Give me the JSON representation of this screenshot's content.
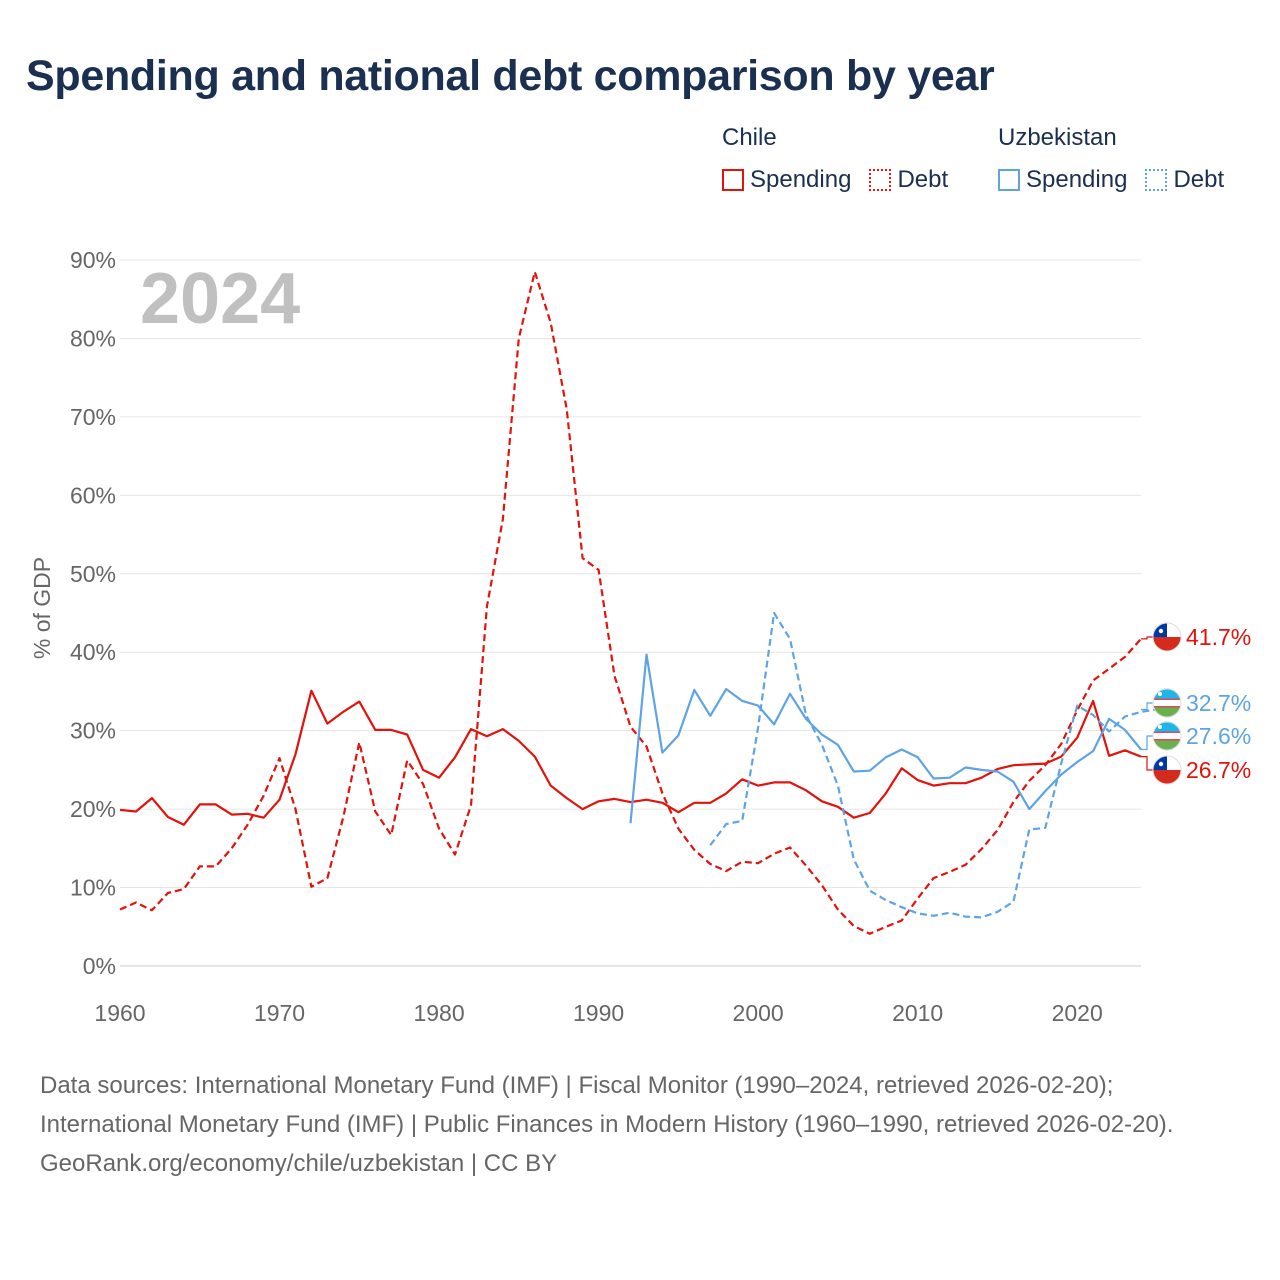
{
  "title": "Spending and national debt comparison by year",
  "legend": {
    "groups": [
      {
        "name": "Chile",
        "color": "#e3120b",
        "items": [
          {
            "label": "Spending",
            "style": "solid"
          },
          {
            "label": "Debt",
            "style": "dotted"
          }
        ]
      },
      {
        "name": "Uzbekistan",
        "color": "#5ea4e4",
        "items": [
          {
            "label": "Spending",
            "style": "solid"
          },
          {
            "label": "Debt",
            "style": "dotted"
          }
        ]
      }
    ]
  },
  "year_label": "2024",
  "chart_data": {
    "type": "line",
    "ylabel": "% of GDP",
    "xlabel": "",
    "x_ticks": [
      1960,
      1970,
      1980,
      1990,
      2000,
      2010,
      2020
    ],
    "y_ticks": [
      0,
      10,
      20,
      30,
      40,
      50,
      60,
      70,
      80,
      90
    ],
    "y_tick_labels": [
      "0%",
      "10%",
      "20%",
      "30%",
      "40%",
      "50%",
      "60%",
      "70%",
      "80%",
      "90%"
    ],
    "xlim": [
      1960,
      2024
    ],
    "ylim": [
      0,
      90
    ],
    "series": [
      {
        "name": "Chile Spending",
        "color": "#e3120b",
        "dash": "solid",
        "start_year": 1960,
        "values": [
          19.9,
          19.7,
          21.4,
          19.0,
          18.0,
          20.6,
          20.6,
          19.3,
          19.4,
          18.9,
          21.2,
          27.0,
          35.1,
          30.9,
          32.4,
          33.7,
          30.1,
          30.1,
          29.5,
          25.0,
          24.0,
          26.6,
          30.2,
          29.3,
          30.2,
          28.7,
          26.7,
          23.0,
          21.4,
          20.0,
          21.0,
          21.3,
          20.9,
          21.2,
          20.8,
          19.6,
          20.8,
          20.8,
          22.0,
          23.8,
          23.0,
          23.4,
          23.4,
          22.4,
          21.0,
          20.3,
          18.9,
          19.5,
          22.0,
          25.2,
          23.7,
          23.0,
          23.3,
          23.3,
          24.0,
          25.1,
          25.6,
          25.7,
          25.8,
          26.7,
          29.1,
          33.8,
          26.8,
          27.5,
          26.7
        ]
      },
      {
        "name": "Chile Debt",
        "color": "#e3120b",
        "dash": "dashed",
        "start_year": 1960,
        "values": [
          7.2,
          8.1,
          7.1,
          9.3,
          9.8,
          12.7,
          12.7,
          15.0,
          18.0,
          21.7,
          26.5,
          20.0,
          10.1,
          11.2,
          19.0,
          28.5,
          19.7,
          16.7,
          26.2,
          23.2,
          17.5,
          14.2,
          20.5,
          45.8,
          57.0,
          80.0,
          88.5,
          82.0,
          71.0,
          52.0,
          50.5,
          37.0,
          30.5,
          28.0,
          22.0,
          17.5,
          14.8,
          13.0,
          12.1,
          13.3,
          13.1,
          14.3,
          15.1,
          12.8,
          10.3,
          7.2,
          5.1,
          4.1,
          5.0,
          5.8,
          8.6,
          11.2,
          12.0,
          12.9,
          14.9,
          17.3,
          20.9,
          23.6,
          25.6,
          28.3,
          32.6,
          36.4,
          37.9,
          39.4,
          41.7
        ]
      },
      {
        "name": "Uzbekistan Spending",
        "color": "#5ea4e4",
        "dash": "solid",
        "start_year": 1992,
        "values": [
          18.2,
          39.7,
          27.2,
          29.4,
          35.2,
          31.9,
          35.3,
          33.8,
          33.2,
          30.8,
          34.7,
          31.5,
          29.5,
          28.2,
          24.8,
          24.9,
          26.6,
          27.6,
          26.6,
          23.9,
          24.0,
          25.3,
          25.0,
          24.8,
          23.5,
          20.0,
          22.3,
          24.4,
          26.0,
          27.4,
          31.5,
          30.1,
          27.6
        ]
      },
      {
        "name": "Uzbekistan Debt",
        "color": "#5ea4e4",
        "dash": "dashed",
        "start_year": 1997,
        "values": [
          15.4,
          18.1,
          18.5,
          30.4,
          45.0,
          41.7,
          32.0,
          28.2,
          23.0,
          13.6,
          9.6,
          8.4,
          7.5,
          6.7,
          6.4,
          6.8,
          6.3,
          6.2,
          6.9,
          8.2,
          17.4,
          17.6,
          25.8,
          33.2,
          32.0,
          29.9,
          31.8,
          32.4,
          32.7
        ]
      }
    ],
    "end_labels": [
      {
        "text": "41.7%",
        "color": "#e3120b",
        "value": 41.7,
        "flag": "chile-flag-icon"
      },
      {
        "text": "32.7%",
        "color": "#5ea4e4",
        "value": 32.7,
        "flag": "uzbekistan-flag-icon"
      },
      {
        "text": "27.6%",
        "color": "#5ea4e4",
        "value": 27.6,
        "flag": "uzbekistan-flag-icon"
      },
      {
        "text": "26.7%",
        "color": "#e3120b",
        "value": 26.7,
        "flag": "chile-flag-icon"
      }
    ]
  },
  "footer": {
    "sources": "Data sources: International Monetary Fund (IMF) | Fiscal Monitor (1990–2024, retrieved 2026-02-20); International Monetary Fund (IMF) | Public Finances in Modern History (1960–1990, retrieved 2026-02-20).",
    "credit": "GeoRank.org/economy/chile/uzbekistan | CC BY"
  }
}
